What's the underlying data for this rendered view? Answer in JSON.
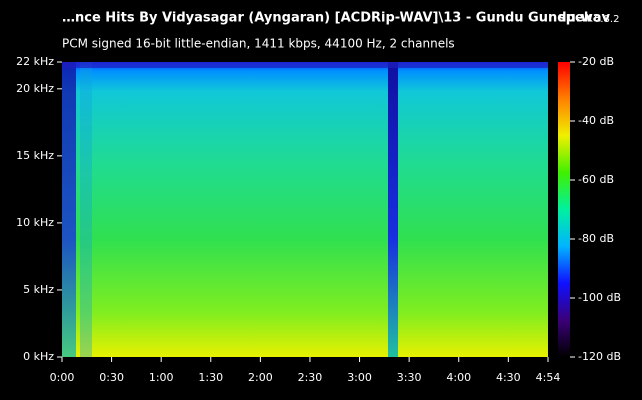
{
  "chart_data": {
    "type": "spectrogram",
    "title": "…nce Hits By Vidyasagar (Ayngaran) [ACDRip-WAV]\\13 - Gundu Gundu.wav",
    "app": "spek",
    "version": "0.8.2",
    "subtitle": "PCM signed 16-bit little-endian, 1411 kbps, 44100 Hz, 2 channels",
    "xlim": [
      0,
      294
    ],
    "xticks": [
      {
        "value": 0,
        "label": "0:00"
      },
      {
        "value": 30,
        "label": "0:30"
      },
      {
        "value": 60,
        "label": "1:00"
      },
      {
        "value": 90,
        "label": "1:30"
      },
      {
        "value": 120,
        "label": "2:00"
      },
      {
        "value": 150,
        "label": "2:30"
      },
      {
        "value": 180,
        "label": "3:00"
      },
      {
        "value": 210,
        "label": "3:30"
      },
      {
        "value": 240,
        "label": "4:00"
      },
      {
        "value": 270,
        "label": "4:30"
      },
      {
        "value": 294,
        "label": "4:54"
      }
    ],
    "ylim": [
      0,
      22
    ],
    "yticks": [
      {
        "value": 0,
        "label": "0 kHz"
      },
      {
        "value": 5,
        "label": "5 kHz"
      },
      {
        "value": 10,
        "label": "10 kHz"
      },
      {
        "value": 15,
        "label": "15 kHz"
      },
      {
        "value": 20,
        "label": "20 kHz"
      },
      {
        "value": 22,
        "label": "22 kHz"
      }
    ],
    "colorbar": {
      "lim": [
        -120,
        -20
      ],
      "ticks": [
        {
          "value": -20,
          "label": "-20 dB"
        },
        {
          "value": -40,
          "label": "-40 dB"
        },
        {
          "value": -60,
          "label": "-60 dB"
        },
        {
          "value": -80,
          "label": "-80 dB"
        },
        {
          "value": -100,
          "label": "-100 dB"
        },
        {
          "value": -120,
          "label": "-120 dB"
        }
      ],
      "palette": [
        "#000000",
        "#3a0078",
        "#1010ff",
        "#00b4ff",
        "#00f0a0",
        "#40f000",
        "#f0f000",
        "#ff8000",
        "#ff0000"
      ]
    }
  }
}
